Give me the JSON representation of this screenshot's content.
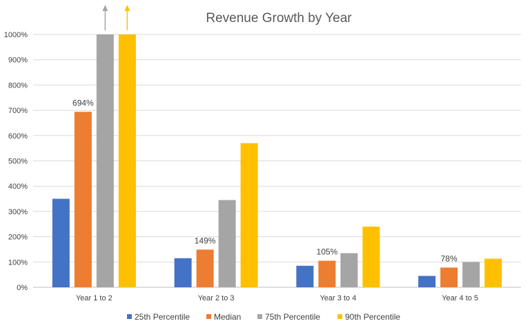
{
  "chart_data": {
    "type": "bar",
    "title": "Revenue Growth by Year",
    "xlabel": "",
    "ylabel": "",
    "categories": [
      "Year 1 to 2",
      "Year 2 to 3",
      "Year 3 to 4",
      "Year 4 to 5"
    ],
    "ylim": [
      0,
      1000
    ],
    "yticks": [
      0,
      100,
      200,
      300,
      400,
      500,
      600,
      700,
      800,
      900,
      1000
    ],
    "ytick_labels": [
      "0%",
      "100%",
      "200%",
      "300%",
      "400%",
      "500%",
      "600%",
      "700%",
      "800%",
      "900%",
      "1000%"
    ],
    "grid": true,
    "legend_position": "bottom",
    "series": [
      {
        "name": "25th Percentile",
        "color": "#4472c4",
        "values": [
          350,
          115,
          85,
          45
        ]
      },
      {
        "name": "Median",
        "color": "#ed7d31",
        "values": [
          694,
          149,
          105,
          78
        ]
      },
      {
        "name": "75th Percentile",
        "color": "#a5a5a5",
        "values": [
          1000,
          345,
          135,
          100
        ]
      },
      {
        "name": "90th Percentile",
        "color": "#ffc000",
        "values": [
          1000,
          570,
          240,
          113
        ]
      }
    ],
    "data_labels": [
      {
        "series": "Median",
        "category": "Year 1 to 2",
        "text": "694%"
      },
      {
        "series": "Median",
        "category": "Year 2 to 3",
        "text": "149%"
      },
      {
        "series": "Median",
        "category": "Year 3 to 4",
        "text": "105%"
      },
      {
        "series": "Median",
        "category": "Year 4 to 5",
        "text": "78%"
      }
    ],
    "overflow_markers": [
      {
        "series": "75th Percentile",
        "category": "Year 1 to 2",
        "marker": "up-arrow-icon"
      },
      {
        "series": "90th Percentile",
        "category": "Year 1 to 2",
        "marker": "up-arrow-icon"
      }
    ]
  }
}
